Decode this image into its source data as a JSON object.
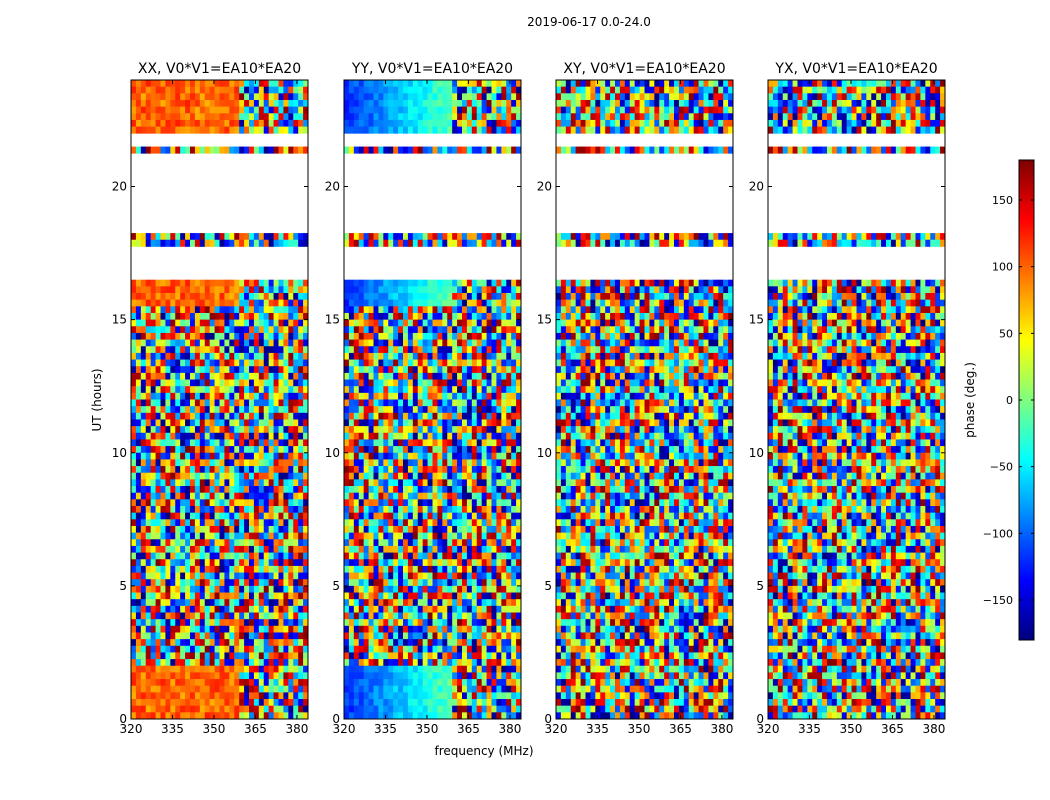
{
  "figure": {
    "suptitle": "2019-06-17 0.0-24.0"
  },
  "chart_data": {
    "type": "heatmap",
    "suptitle": "2019-06-17 0.0-24.0",
    "ylabel": "UT (hours)",
    "xlabel": "frequency (MHz)",
    "xlim": [
      320,
      384
    ],
    "ylim": [
      0,
      24
    ],
    "xticks": [
      320,
      335,
      350,
      365,
      380
    ],
    "yticks": [
      0,
      5,
      10,
      15,
      20
    ],
    "panels": [
      {
        "title": "XX, V0*V1=EA10*EA20"
      },
      {
        "title": "YY, V0*V1=EA10*EA20"
      },
      {
        "title": "XY, V0*V1=EA10*EA20"
      },
      {
        "title": "YX, V0*V1=EA10*EA20"
      }
    ],
    "colorbar": {
      "label": "phase (deg.)",
      "range": [
        -180,
        180
      ],
      "ticks": [
        150,
        100,
        50,
        0,
        -50,
        -100,
        -150
      ],
      "tick_labels": [
        "150",
        "100",
        "50",
        "0",
        "−50",
        "−100",
        "−150"
      ],
      "colormap": "jet"
    },
    "data_gaps_hours": [
      [
        16.6,
        17.8
      ],
      [
        18.3,
        20.9
      ],
      [
        21.0,
        21.3
      ],
      [
        21.6,
        22.0
      ]
    ]
  }
}
